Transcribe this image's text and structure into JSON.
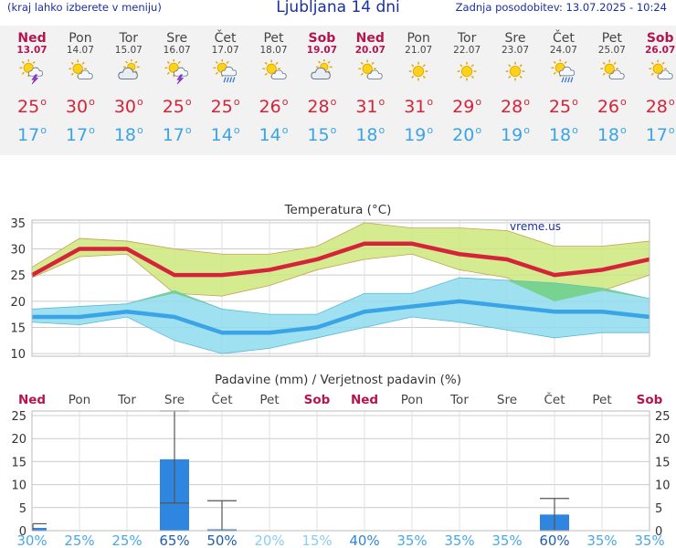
{
  "header": {
    "menu_hint": "(kraj lahko izberete v meniju)",
    "title": "Ljubljana 14 dni",
    "updated": "Zadnja posodobitev: 13.07.2025 - 10:24"
  },
  "days": [
    {
      "name": "Ned",
      "date": "13.07",
      "weekend": true,
      "icon": "sun-cloud-thunder-icon",
      "max": "25",
      "min": "17"
    },
    {
      "name": "Pon",
      "date": "14.07",
      "weekend": false,
      "icon": "sun-cloud-icon",
      "max": "30",
      "min": "17"
    },
    {
      "name": "Tor",
      "date": "15.07",
      "weekend": false,
      "icon": "partly-cloudy-icon",
      "max": "30",
      "min": "18"
    },
    {
      "name": "Sre",
      "date": "16.07",
      "weekend": false,
      "icon": "sun-cloud-thunder-icon",
      "max": "25",
      "min": "17"
    },
    {
      "name": "Čet",
      "date": "17.07",
      "weekend": false,
      "icon": "sun-cloud-rain-icon",
      "max": "25",
      "min": "14"
    },
    {
      "name": "Pet",
      "date": "18.07",
      "weekend": false,
      "icon": "sun-cloud-icon",
      "max": "26",
      "min": "14"
    },
    {
      "name": "Sob",
      "date": "19.07",
      "weekend": true,
      "icon": "partly-cloudy-icon",
      "max": "28",
      "min": "15"
    },
    {
      "name": "Ned",
      "date": "20.07",
      "weekend": true,
      "icon": "sun-cloud-icon",
      "max": "31",
      "min": "18"
    },
    {
      "name": "Pon",
      "date": "21.07",
      "weekend": false,
      "icon": "sun-icon",
      "max": "31",
      "min": "19"
    },
    {
      "name": "Tor",
      "date": "22.07",
      "weekend": false,
      "icon": "sun-icon",
      "max": "29",
      "min": "20"
    },
    {
      "name": "Sre",
      "date": "23.07",
      "weekend": false,
      "icon": "sun-icon",
      "max": "28",
      "min": "19"
    },
    {
      "name": "Čet",
      "date": "24.07",
      "weekend": false,
      "icon": "sun-cloud-rain-icon",
      "max": "25",
      "min": "18"
    },
    {
      "name": "Pet",
      "date": "25.07",
      "weekend": false,
      "icon": "sun-cloud-icon",
      "max": "26",
      "min": "18"
    },
    {
      "name": "Sob",
      "date": "26.07",
      "weekend": true,
      "icon": "sun-cloud-icon",
      "max": "28",
      "min": "17"
    }
  ],
  "colors": {
    "max_line": "#d5243a",
    "min_line": "#3aa4e6",
    "max_band": "#cde87c",
    "min_band": "#8fdcef",
    "overlap": "#6fcf7c",
    "bar": "#2e86e0",
    "weekend": "#b3164f",
    "grid": "#cccccc"
  },
  "chart_data": [
    {
      "type": "line",
      "title": "Temperatura (°C)",
      "watermark": "vreme.us",
      "ylim": [
        9.5,
        35.5
      ],
      "yticks": [
        10,
        15,
        20,
        25,
        30,
        35
      ],
      "grid": true,
      "series": [
        {
          "values": [
            25,
            30,
            30,
            25,
            25,
            26,
            28,
            31,
            31,
            29,
            28,
            25,
            26,
            28
          ]
        },
        {
          "values": [
            17,
            17,
            18,
            17,
            14,
            14,
            15,
            18,
            19,
            20,
            19,
            18,
            18,
            17
          ]
        }
      ],
      "max_band_upper": [
        26.5,
        32,
        31.5,
        30,
        29,
        29,
        30.5,
        35,
        34,
        34,
        33.5,
        30.5,
        30.5,
        31.5
      ],
      "max_band_lower": [
        24.5,
        28.5,
        29,
        21.5,
        21,
        23,
        26,
        28,
        29,
        26,
        24.5,
        20,
        22,
        25
      ],
      "min_band_upper": [
        18.5,
        19,
        19.5,
        22,
        18.5,
        17.5,
        17.5,
        21.5,
        21.5,
        24.5,
        24,
        23.5,
        22.5,
        20.5
      ],
      "min_band_lower": [
        16,
        15.5,
        17,
        12.5,
        10,
        11,
        13,
        15,
        17,
        16,
        14.5,
        13,
        14,
        14
      ]
    },
    {
      "type": "bar",
      "title": "Padavine (mm) / Verjetnost padavin (%)",
      "ylim": [
        0,
        26
      ],
      "yticks": [
        0,
        5,
        10,
        15,
        20,
        25
      ],
      "grid": true,
      "categories": [
        "Ned",
        "Pon",
        "Tor",
        "Sre",
        "Čet",
        "Pet",
        "Sob",
        "Ned",
        "Pon",
        "Tor",
        "Sre",
        "Čet",
        "Pet",
        "Sob"
      ],
      "weekend": [
        true,
        false,
        false,
        false,
        false,
        false,
        true,
        true,
        false,
        false,
        false,
        false,
        false,
        true
      ],
      "values": [
        0.6,
        0,
        0,
        15.5,
        0.3,
        0,
        0,
        0,
        0,
        0,
        0,
        3.5,
        0,
        0
      ],
      "error_low": [
        0,
        null,
        null,
        6,
        0,
        null,
        null,
        null,
        null,
        null,
        null,
        0,
        null,
        null
      ],
      "error_high": [
        1.5,
        null,
        null,
        26,
        6.5,
        null,
        null,
        null,
        null,
        null,
        null,
        7,
        null,
        null
      ],
      "probability": [
        "30%",
        "25%",
        "25%",
        "65%",
        "50%",
        "20%",
        "15%",
        "40%",
        "35%",
        "35%",
        "35%",
        "60%",
        "35%",
        "35%"
      ],
      "probability_values": [
        30,
        25,
        25,
        65,
        50,
        20,
        15,
        40,
        35,
        35,
        35,
        60,
        35,
        35
      ]
    }
  ]
}
